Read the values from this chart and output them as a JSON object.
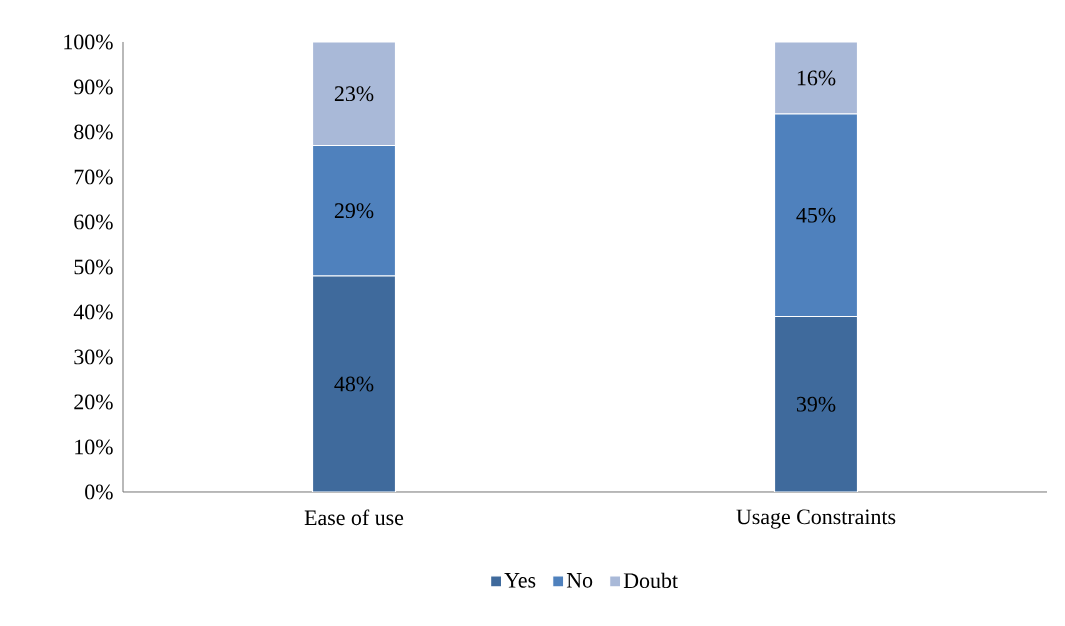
{
  "chart_data": {
    "type": "bar",
    "stacked": true,
    "categories": [
      "Ease of use",
      "Usage Constraints"
    ],
    "series": [
      {
        "name": "Yes",
        "color": "#3f6a9c",
        "values": [
          48,
          39
        ],
        "value_labels": [
          "48%",
          "39%"
        ]
      },
      {
        "name": "No",
        "color": "#4f81bd",
        "values": [
          29,
          45
        ],
        "value_labels": [
          "29%",
          "45%"
        ]
      },
      {
        "name": "Doubt",
        "color": "#a9b9d8",
        "values": [
          23,
          16
        ],
        "value_labels": [
          "23%",
          "16%"
        ]
      }
    ],
    "ylim": [
      0,
      100
    ],
    "yticks": [
      {
        "value": 0,
        "label": "0%"
      },
      {
        "value": 10,
        "label": "10%"
      },
      {
        "value": 20,
        "label": "20%"
      },
      {
        "value": 30,
        "label": "30%"
      },
      {
        "value": 40,
        "label": "40%"
      },
      {
        "value": 50,
        "label": "50%"
      },
      {
        "value": 60,
        "label": "60%"
      },
      {
        "value": 70,
        "label": "70%"
      },
      {
        "value": 80,
        "label": "80%"
      },
      {
        "value": 90,
        "label": "90%"
      },
      {
        "value": 100,
        "label": "100%"
      }
    ],
    "legend": "bottom",
    "grid": false
  }
}
